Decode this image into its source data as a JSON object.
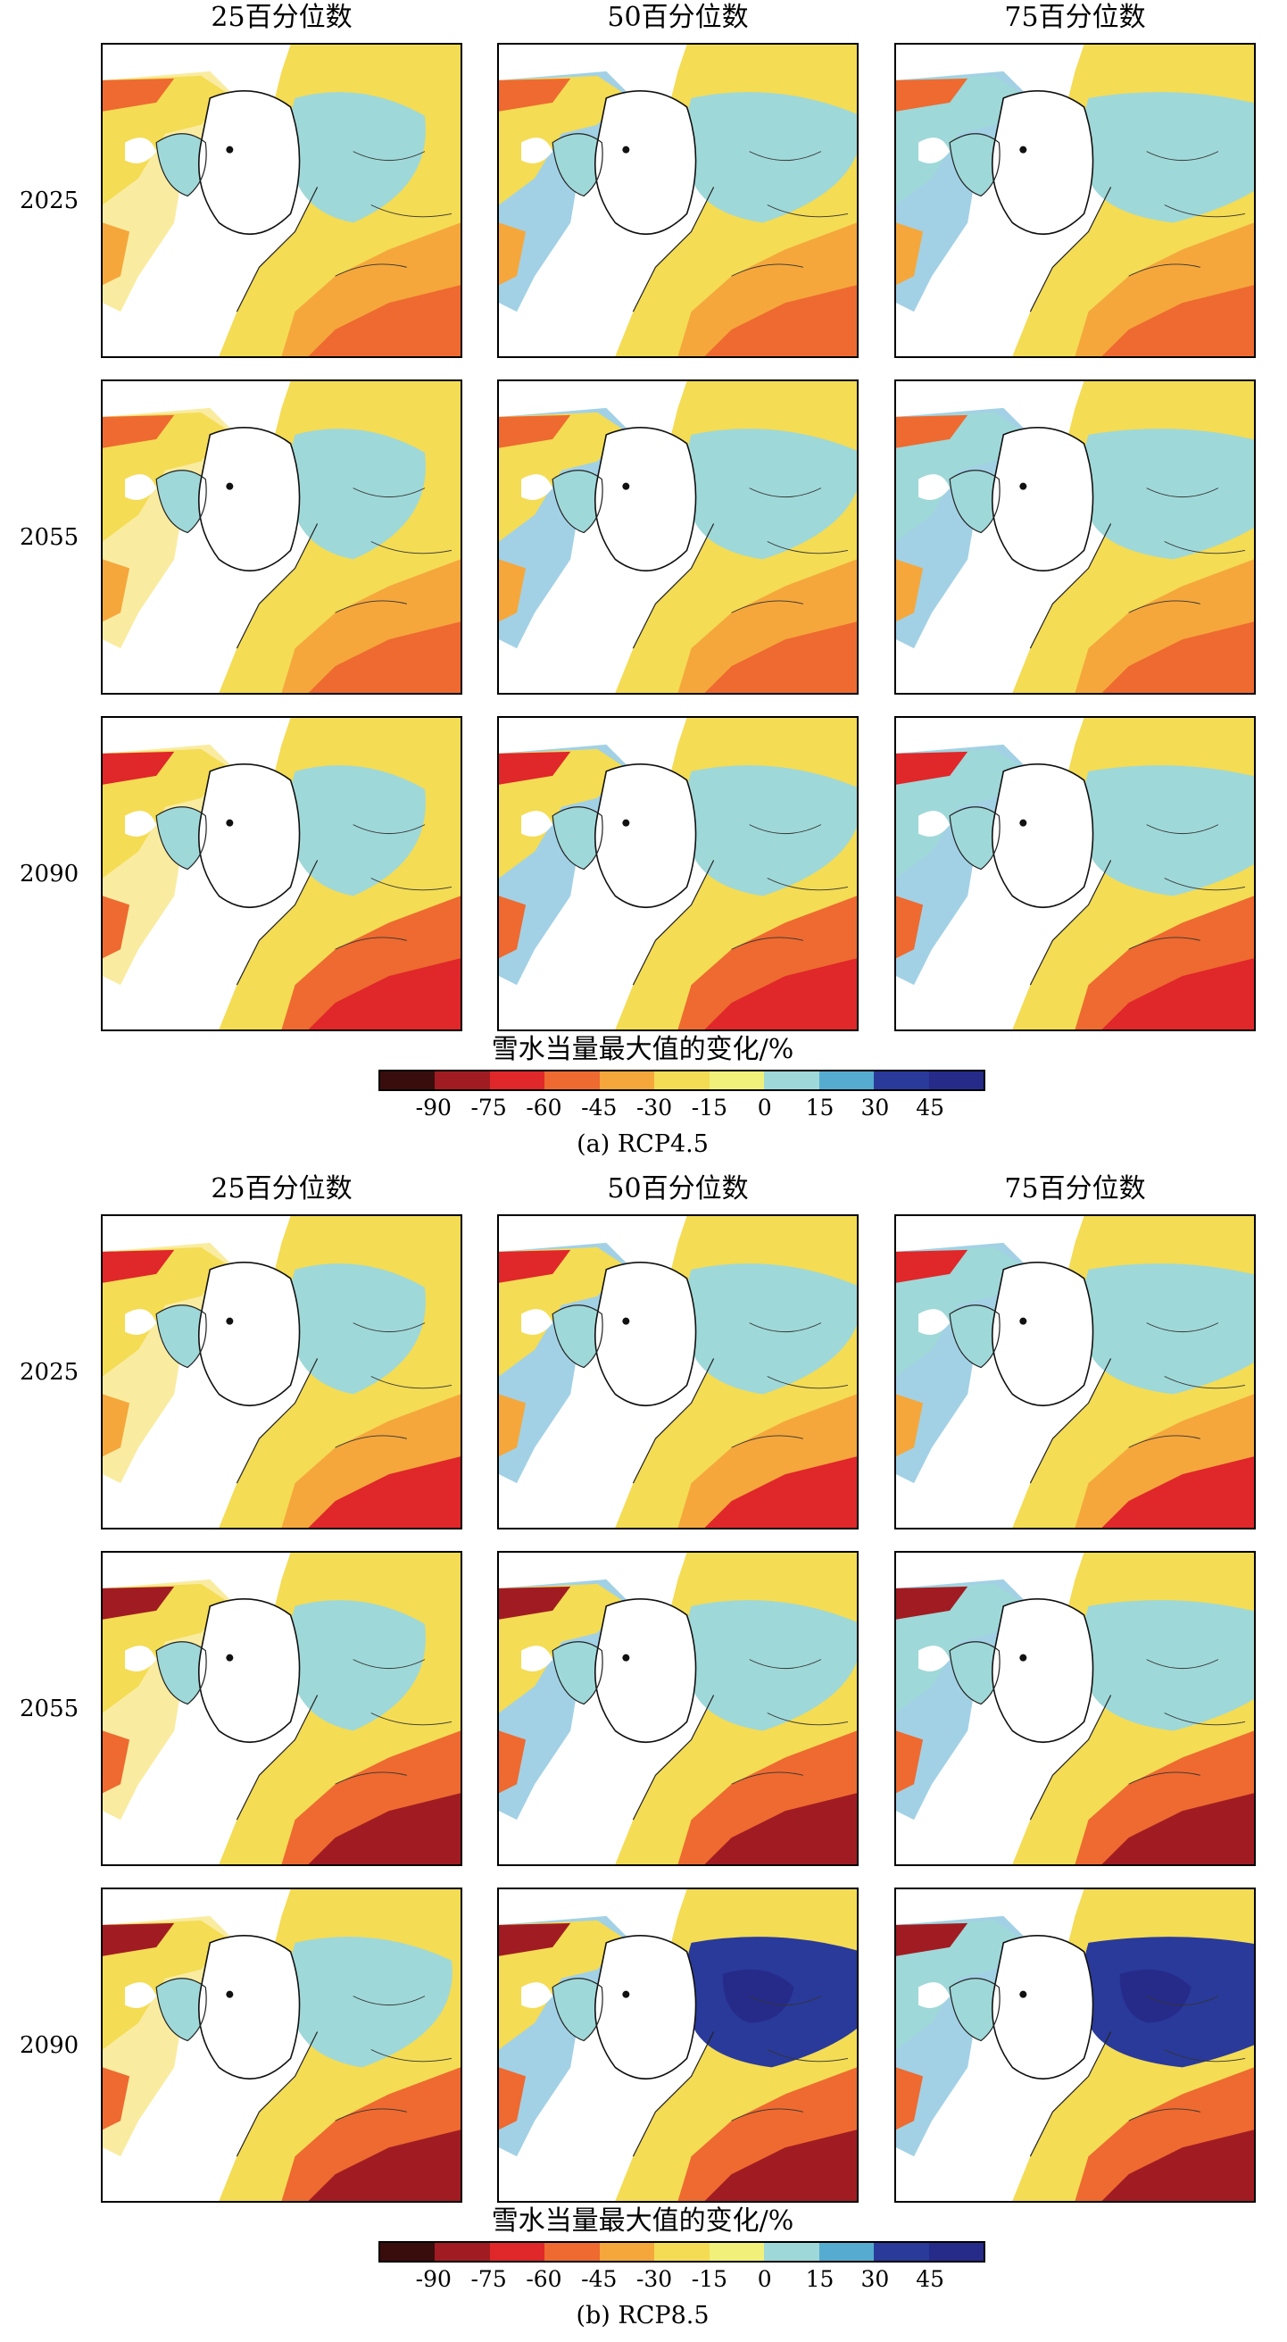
{
  "columns": [
    "25百分位数",
    "50百分位数",
    "75百分位数"
  ],
  "sections": [
    {
      "caption": "(a) RCP4.5",
      "years": [
        "2025",
        "2055",
        "2090"
      ]
    },
    {
      "caption": "(b) RCP8.5",
      "years": [
        "2025",
        "2055",
        "2090"
      ]
    }
  ],
  "colorbar": {
    "title": "雪水当量最大值的变化/%",
    "ticks": [
      "-90",
      "-75",
      "-60",
      "-45",
      "-30",
      "-15",
      "0",
      "15",
      "30",
      "45"
    ],
    "colors": [
      "#3a0d0d",
      "#a11c22",
      "#e0272a",
      "#ee6a30",
      "#f5a73c",
      "#f4dc54",
      "#f0f07a",
      "#9fd8d8",
      "#56acd0",
      "#2a3a9a",
      "#262b8a"
    ]
  }
}
